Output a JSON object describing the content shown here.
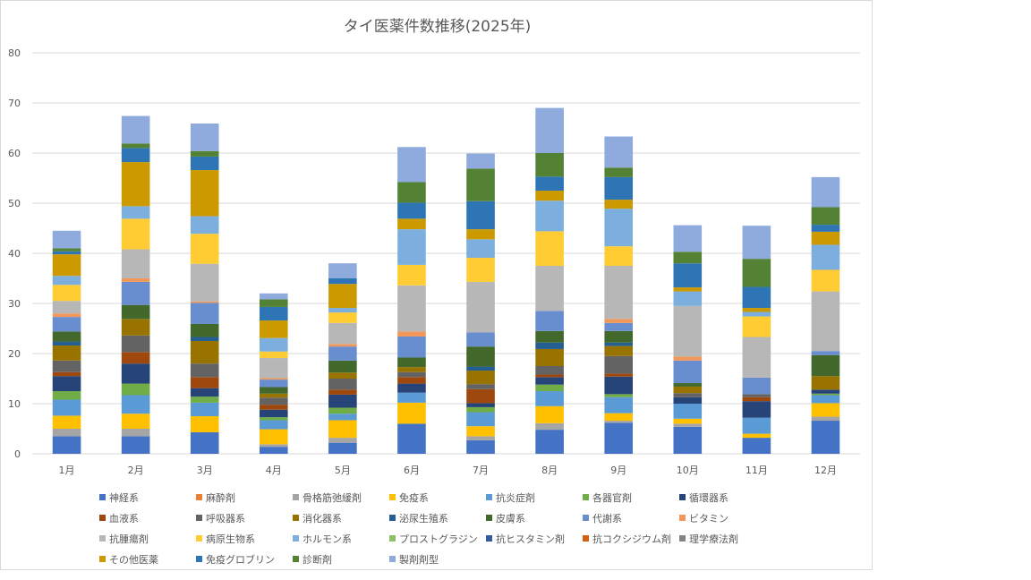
{
  "chart_data": {
    "type": "bar",
    "stacked": true,
    "title": "タイ医薬件数推移(2025年)",
    "xlabel": "",
    "ylabel": "",
    "ylim": [
      0,
      80
    ],
    "yticks": [
      0,
      10,
      20,
      30,
      40,
      50,
      60,
      70,
      80
    ],
    "grid": true,
    "legend_position": "bottom",
    "categories": [
      "1月",
      "2月",
      "3月",
      "4月",
      "5月",
      "6月",
      "7月",
      "8月",
      "9月",
      "10月",
      "11月",
      "12月"
    ],
    "series": [
      {
        "name": "神経系",
        "color": "#4472c4",
        "values": [
          3.5,
          3.5,
          4.3,
          1.4,
          2.2,
          6.0,
          2.7,
          4.8,
          6.2,
          5.4,
          3.2,
          6.6
        ]
      },
      {
        "name": "麻酔剤",
        "color": "#ed7d31",
        "values": [
          0,
          0,
          0,
          0,
          0,
          0,
          0,
          0,
          0,
          0,
          0,
          0
        ]
      },
      {
        "name": "骨格筋弛緩剤",
        "color": "#a5a5a5",
        "values": [
          1.5,
          1.5,
          0,
          0.5,
          1.0,
          0,
          0.8,
          1.3,
          0.4,
          0.6,
          0,
          0.8
        ]
      },
      {
        "name": "免疫系",
        "color": "#ffc000",
        "values": [
          2.6,
          3.0,
          3.2,
          3.0,
          3.5,
          4.2,
          2.0,
          3.4,
          1.5,
          1.0,
          0.8,
          2.7
        ]
      },
      {
        "name": "抗炎症剤",
        "color": "#5b9bd5",
        "values": [
          3.2,
          3.7,
          2.7,
          1.8,
          1.3,
          2.0,
          2.8,
          3.0,
          3.2,
          3.0,
          3.2,
          1.6
        ]
      },
      {
        "name": "各器官剤",
        "color": "#70ad47",
        "values": [
          1.7,
          2.3,
          1.2,
          0.6,
          1.2,
          0,
          1.0,
          1.3,
          0.6,
          0,
          0,
          0.3
        ]
      },
      {
        "name": "循環器系",
        "color": "#264478",
        "values": [
          3.0,
          4.0,
          1.7,
          1.5,
          2.6,
          1.8,
          0.8,
          1.5,
          3.5,
          1.3,
          3.3,
          0.8
        ]
      },
      {
        "name": "血液系",
        "color": "#9e480e",
        "values": [
          0.8,
          2.3,
          2.2,
          1.0,
          1.0,
          1.3,
          2.8,
          0.5,
          0.6,
          0,
          0.8,
          0
        ]
      },
      {
        "name": "呼吸器系",
        "color": "#636363",
        "values": [
          2.3,
          3.3,
          2.7,
          1.4,
          2.2,
          1.0,
          1.0,
          1.7,
          3.5,
          0.8,
          0.6,
          0
        ]
      },
      {
        "name": "消化器系",
        "color": "#997300",
        "values": [
          3.0,
          3.3,
          4.5,
          0.8,
          1.2,
          1.0,
          2.7,
          3.4,
          2.0,
          1.3,
          0,
          2.7
        ]
      },
      {
        "name": "泌尿生殖系",
        "color": "#255e91",
        "values": [
          0.8,
          0,
          0.8,
          0,
          0,
          0,
          0.8,
          1.3,
          0.7,
          0,
          0,
          0
        ]
      },
      {
        "name": "皮膚系",
        "color": "#43682b",
        "values": [
          2.0,
          2.8,
          2.6,
          1.3,
          2.4,
          1.9,
          4.0,
          2.3,
          2.3,
          0.7,
          0,
          4.2
        ]
      },
      {
        "name": "代謝系",
        "color": "#698ed0",
        "values": [
          2.9,
          4.6,
          4.2,
          1.5,
          2.8,
          4.2,
          2.8,
          4.0,
          1.6,
          4.5,
          3.3,
          0.8
        ]
      },
      {
        "name": "ビタミン",
        "color": "#f1975a",
        "values": [
          0.7,
          0.7,
          0.3,
          0.3,
          0.5,
          1.0,
          0,
          0,
          0.8,
          0.8,
          0,
          0
        ]
      },
      {
        "name": "抗腫瘍剤",
        "color": "#b7b7b7",
        "values": [
          2.5,
          5.8,
          7.5,
          4.0,
          4.2,
          9.2,
          10.1,
          9.0,
          10.6,
          10.1,
          8.1,
          11.9
        ]
      },
      {
        "name": "病原生物系",
        "color": "#ffcd33",
        "values": [
          3.2,
          6.1,
          6.0,
          1.3,
          2.1,
          4.1,
          4.8,
          6.9,
          3.9,
          0,
          4.1,
          4.3
        ]
      },
      {
        "name": "ホルモン系",
        "color": "#7cafdd",
        "values": [
          1.8,
          2.5,
          3.5,
          2.7,
          0.9,
          7.1,
          3.7,
          6.1,
          7.5,
          2.9,
          0.9,
          5.0
        ]
      },
      {
        "name": "プロストグラジン",
        "color": "#8cc168",
        "values": [
          0,
          0,
          0,
          0,
          0,
          0,
          0,
          0,
          0,
          0,
          0,
          0
        ]
      },
      {
        "name": "抗ヒスタミン剤",
        "color": "#335aa1",
        "values": [
          0,
          0,
          0,
          0,
          0,
          0,
          0,
          0,
          0,
          0,
          0,
          0
        ]
      },
      {
        "name": "抗コクシジウム剤",
        "color": "#d26012",
        "values": [
          0,
          0,
          0,
          0,
          0,
          0,
          0,
          0,
          0,
          0,
          0,
          0
        ]
      },
      {
        "name": "理学療法剤",
        "color": "#848484",
        "values": [
          0,
          0,
          0,
          0,
          0,
          0,
          0,
          0,
          0,
          0,
          0,
          0
        ]
      },
      {
        "name": "その他医薬",
        "color": "#cc9a00",
        "values": [
          4.3,
          8.8,
          9.2,
          3.5,
          4.8,
          2.1,
          2.0,
          2.0,
          1.8,
          0.8,
          0.8,
          2.6
        ]
      },
      {
        "name": "免疫グロブリン",
        "color": "#2e75b6",
        "values": [
          0.6,
          2.8,
          2.7,
          2.7,
          1.1,
          3.2,
          5.6,
          2.8,
          4.5,
          4.8,
          4.2,
          1.4
        ]
      },
      {
        "name": "診断剤",
        "color": "#548235",
        "values": [
          0.6,
          0.9,
          1.1,
          1.5,
          0,
          4.1,
          6.5,
          4.7,
          1.9,
          2.3,
          5.6,
          3.5
        ]
      },
      {
        "name": "製剤剤型",
        "color": "#8faadc",
        "values": [
          3.5,
          5.5,
          5.5,
          1.2,
          3.0,
          7.0,
          3.0,
          9.0,
          6.2,
          5.3,
          6.6,
          6.0
        ]
      }
    ]
  }
}
